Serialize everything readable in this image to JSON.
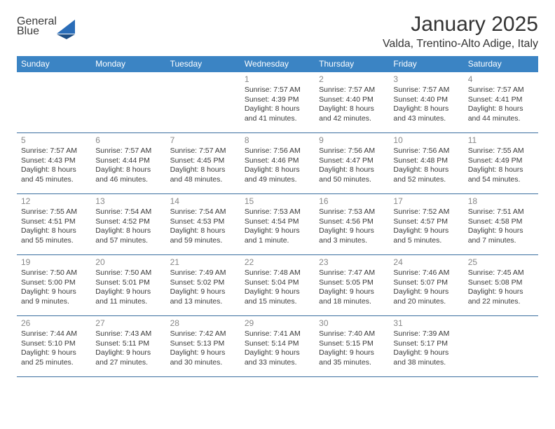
{
  "brand": {
    "word1": "General",
    "word2": "Blue"
  },
  "title": "January 2025",
  "location": "Valda, Trentino-Alto Adige, Italy",
  "colors": {
    "header_bg": "#3b84c4",
    "header_text": "#ffffff",
    "rule": "#3b6fa0",
    "daynum": "#888888",
    "body_text": "#3a3a3a",
    "brand_gray": "#5a5a5a",
    "brand_blue": "#2a6db8"
  },
  "day_names": [
    "Sunday",
    "Monday",
    "Tuesday",
    "Wednesday",
    "Thursday",
    "Friday",
    "Saturday"
  ],
  "weeks": [
    [
      null,
      null,
      null,
      {
        "n": "1",
        "sr": "Sunrise: 7:57 AM",
        "ss": "Sunset: 4:39 PM",
        "d1": "Daylight: 8 hours",
        "d2": "and 41 minutes."
      },
      {
        "n": "2",
        "sr": "Sunrise: 7:57 AM",
        "ss": "Sunset: 4:40 PM",
        "d1": "Daylight: 8 hours",
        "d2": "and 42 minutes."
      },
      {
        "n": "3",
        "sr": "Sunrise: 7:57 AM",
        "ss": "Sunset: 4:40 PM",
        "d1": "Daylight: 8 hours",
        "d2": "and 43 minutes."
      },
      {
        "n": "4",
        "sr": "Sunrise: 7:57 AM",
        "ss": "Sunset: 4:41 PM",
        "d1": "Daylight: 8 hours",
        "d2": "and 44 minutes."
      }
    ],
    [
      {
        "n": "5",
        "sr": "Sunrise: 7:57 AM",
        "ss": "Sunset: 4:43 PM",
        "d1": "Daylight: 8 hours",
        "d2": "and 45 minutes."
      },
      {
        "n": "6",
        "sr": "Sunrise: 7:57 AM",
        "ss": "Sunset: 4:44 PM",
        "d1": "Daylight: 8 hours",
        "d2": "and 46 minutes."
      },
      {
        "n": "7",
        "sr": "Sunrise: 7:57 AM",
        "ss": "Sunset: 4:45 PM",
        "d1": "Daylight: 8 hours",
        "d2": "and 48 minutes."
      },
      {
        "n": "8",
        "sr": "Sunrise: 7:56 AM",
        "ss": "Sunset: 4:46 PM",
        "d1": "Daylight: 8 hours",
        "d2": "and 49 minutes."
      },
      {
        "n": "9",
        "sr": "Sunrise: 7:56 AM",
        "ss": "Sunset: 4:47 PM",
        "d1": "Daylight: 8 hours",
        "d2": "and 50 minutes."
      },
      {
        "n": "10",
        "sr": "Sunrise: 7:56 AM",
        "ss": "Sunset: 4:48 PM",
        "d1": "Daylight: 8 hours",
        "d2": "and 52 minutes."
      },
      {
        "n": "11",
        "sr": "Sunrise: 7:55 AM",
        "ss": "Sunset: 4:49 PM",
        "d1": "Daylight: 8 hours",
        "d2": "and 54 minutes."
      }
    ],
    [
      {
        "n": "12",
        "sr": "Sunrise: 7:55 AM",
        "ss": "Sunset: 4:51 PM",
        "d1": "Daylight: 8 hours",
        "d2": "and 55 minutes."
      },
      {
        "n": "13",
        "sr": "Sunrise: 7:54 AM",
        "ss": "Sunset: 4:52 PM",
        "d1": "Daylight: 8 hours",
        "d2": "and 57 minutes."
      },
      {
        "n": "14",
        "sr": "Sunrise: 7:54 AM",
        "ss": "Sunset: 4:53 PM",
        "d1": "Daylight: 8 hours",
        "d2": "and 59 minutes."
      },
      {
        "n": "15",
        "sr": "Sunrise: 7:53 AM",
        "ss": "Sunset: 4:54 PM",
        "d1": "Daylight: 9 hours",
        "d2": "and 1 minute."
      },
      {
        "n": "16",
        "sr": "Sunrise: 7:53 AM",
        "ss": "Sunset: 4:56 PM",
        "d1": "Daylight: 9 hours",
        "d2": "and 3 minutes."
      },
      {
        "n": "17",
        "sr": "Sunrise: 7:52 AM",
        "ss": "Sunset: 4:57 PM",
        "d1": "Daylight: 9 hours",
        "d2": "and 5 minutes."
      },
      {
        "n": "18",
        "sr": "Sunrise: 7:51 AM",
        "ss": "Sunset: 4:58 PM",
        "d1": "Daylight: 9 hours",
        "d2": "and 7 minutes."
      }
    ],
    [
      {
        "n": "19",
        "sr": "Sunrise: 7:50 AM",
        "ss": "Sunset: 5:00 PM",
        "d1": "Daylight: 9 hours",
        "d2": "and 9 minutes."
      },
      {
        "n": "20",
        "sr": "Sunrise: 7:50 AM",
        "ss": "Sunset: 5:01 PM",
        "d1": "Daylight: 9 hours",
        "d2": "and 11 minutes."
      },
      {
        "n": "21",
        "sr": "Sunrise: 7:49 AM",
        "ss": "Sunset: 5:02 PM",
        "d1": "Daylight: 9 hours",
        "d2": "and 13 minutes."
      },
      {
        "n": "22",
        "sr": "Sunrise: 7:48 AM",
        "ss": "Sunset: 5:04 PM",
        "d1": "Daylight: 9 hours",
        "d2": "and 15 minutes."
      },
      {
        "n": "23",
        "sr": "Sunrise: 7:47 AM",
        "ss": "Sunset: 5:05 PM",
        "d1": "Daylight: 9 hours",
        "d2": "and 18 minutes."
      },
      {
        "n": "24",
        "sr": "Sunrise: 7:46 AM",
        "ss": "Sunset: 5:07 PM",
        "d1": "Daylight: 9 hours",
        "d2": "and 20 minutes."
      },
      {
        "n": "25",
        "sr": "Sunrise: 7:45 AM",
        "ss": "Sunset: 5:08 PM",
        "d1": "Daylight: 9 hours",
        "d2": "and 22 minutes."
      }
    ],
    [
      {
        "n": "26",
        "sr": "Sunrise: 7:44 AM",
        "ss": "Sunset: 5:10 PM",
        "d1": "Daylight: 9 hours",
        "d2": "and 25 minutes."
      },
      {
        "n": "27",
        "sr": "Sunrise: 7:43 AM",
        "ss": "Sunset: 5:11 PM",
        "d1": "Daylight: 9 hours",
        "d2": "and 27 minutes."
      },
      {
        "n": "28",
        "sr": "Sunrise: 7:42 AM",
        "ss": "Sunset: 5:13 PM",
        "d1": "Daylight: 9 hours",
        "d2": "and 30 minutes."
      },
      {
        "n": "29",
        "sr": "Sunrise: 7:41 AM",
        "ss": "Sunset: 5:14 PM",
        "d1": "Daylight: 9 hours",
        "d2": "and 33 minutes."
      },
      {
        "n": "30",
        "sr": "Sunrise: 7:40 AM",
        "ss": "Sunset: 5:15 PM",
        "d1": "Daylight: 9 hours",
        "d2": "and 35 minutes."
      },
      {
        "n": "31",
        "sr": "Sunrise: 7:39 AM",
        "ss": "Sunset: 5:17 PM",
        "d1": "Daylight: 9 hours",
        "d2": "and 38 minutes."
      },
      null
    ]
  ]
}
